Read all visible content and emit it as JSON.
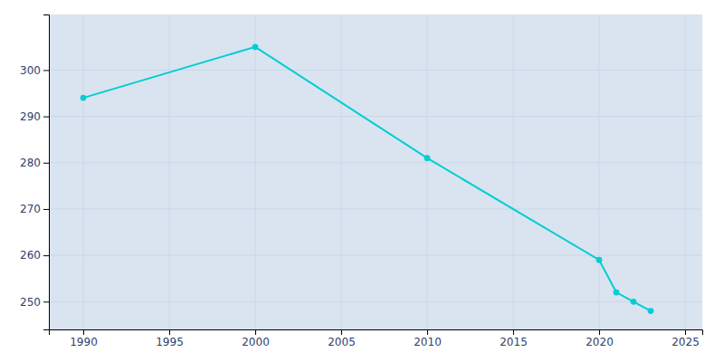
{
  "chart_data": {
    "type": "line",
    "x": [
      1990,
      2000,
      2010,
      2020,
      2021,
      2022,
      2023
    ],
    "values": [
      294,
      305,
      281,
      259,
      252,
      250,
      248
    ],
    "color": "#00CED1",
    "marker": "circle",
    "xlim": [
      1988,
      2026
    ],
    "ylim": [
      244,
      312
    ],
    "xticks": [
      1990,
      1995,
      2000,
      2005,
      2010,
      2015,
      2020,
      2025
    ],
    "yticks": [
      250,
      260,
      270,
      280,
      290,
      300
    ],
    "grid": true
  }
}
